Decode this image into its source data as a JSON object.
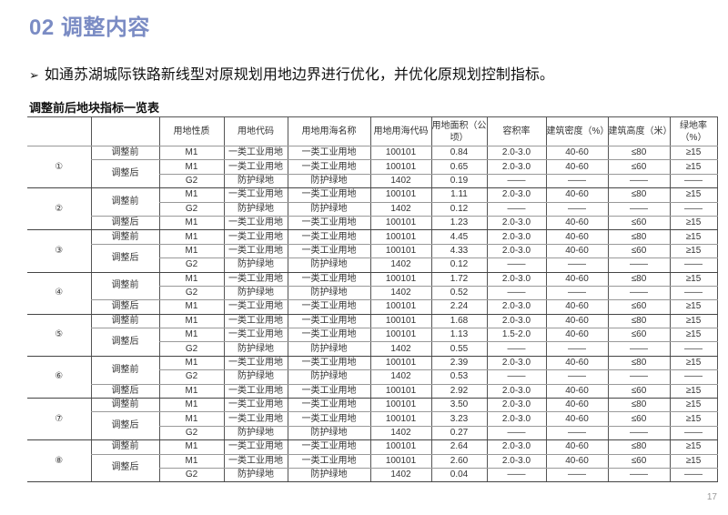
{
  "title": "02 调整内容",
  "bullet": {
    "icon": "arrow-right-icon",
    "symbol": "➢",
    "text": "如通苏湖城际铁路新线型对原规划用地边界进行优化，并优化原规划控制指标。"
  },
  "table_title": "调整前后地块指标一览表",
  "headers": [
    "",
    "",
    "用地性质",
    "用地代码",
    "用地用海名称",
    "用地用海代码",
    "用地面积（公顷）",
    "容积率",
    "建筑密度（%）",
    "建筑高度（米）",
    "绿地率（%）"
  ],
  "groups": [
    {
      "label": "①",
      "phases": [
        {
          "label": "调整前",
          "rows": [
            [
              "M1",
              "一类工业用地",
              "一类工业用地",
              "100101",
              "0.84",
              "2.0-3.0",
              "40-60",
              "≤80",
              "≥15"
            ]
          ]
        },
        {
          "label": "调整后",
          "rows": [
            [
              "M1",
              "一类工业用地",
              "一类工业用地",
              "100101",
              "0.65",
              "2.0-3.0",
              "40-60",
              "≤60",
              "≥15"
            ],
            [
              "G2",
              "防护绿地",
              "防护绿地",
              "1402",
              "0.19",
              "——",
              "——",
              "——",
              "——"
            ]
          ]
        }
      ]
    },
    {
      "label": "②",
      "phases": [
        {
          "label": "调整前",
          "rows": [
            [
              "M1",
              "一类工业用地",
              "一类工业用地",
              "100101",
              "1.11",
              "2.0-3.0",
              "40-60",
              "≤80",
              "≥15"
            ],
            [
              "G2",
              "防护绿地",
              "防护绿地",
              "1402",
              "0.12",
              "——",
              "——",
              "——",
              "——"
            ]
          ]
        },
        {
          "label": "调整后",
          "rows": [
            [
              "M1",
              "一类工业用地",
              "一类工业用地",
              "100101",
              "1.23",
              "2.0-3.0",
              "40-60",
              "≤60",
              "≥15"
            ]
          ]
        }
      ]
    },
    {
      "label": "③",
      "phases": [
        {
          "label": "调整前",
          "rows": [
            [
              "M1",
              "一类工业用地",
              "一类工业用地",
              "100101",
              "4.45",
              "2.0-3.0",
              "40-60",
              "≤80",
              "≥15"
            ]
          ]
        },
        {
          "label": "调整后",
          "rows": [
            [
              "M1",
              "一类工业用地",
              "一类工业用地",
              "100101",
              "4.33",
              "2.0-3.0",
              "40-60",
              "≤60",
              "≥15"
            ],
            [
              "G2",
              "防护绿地",
              "防护绿地",
              "1402",
              "0.12",
              "——",
              "——",
              "——",
              "——"
            ]
          ]
        }
      ]
    },
    {
      "label": "④",
      "phases": [
        {
          "label": "调整前",
          "rows": [
            [
              "M1",
              "一类工业用地",
              "一类工业用地",
              "100101",
              "1.72",
              "2.0-3.0",
              "40-60",
              "≤80",
              "≥15"
            ],
            [
              "G2",
              "防护绿地",
              "防护绿地",
              "1402",
              "0.52",
              "——",
              "——",
              "——",
              "——"
            ]
          ]
        },
        {
          "label": "调整后",
          "rows": [
            [
              "M1",
              "一类工业用地",
              "一类工业用地",
              "100101",
              "2.24",
              "2.0-3.0",
              "40-60",
              "≤60",
              "≥15"
            ]
          ]
        }
      ]
    },
    {
      "label": "⑤",
      "phases": [
        {
          "label": "调整前",
          "rows": [
            [
              "M1",
              "一类工业用地",
              "一类工业用地",
              "100101",
              "1.68",
              "2.0-3.0",
              "40-60",
              "≤80",
              "≥15"
            ]
          ]
        },
        {
          "label": "调整后",
          "rows": [
            [
              "M1",
              "一类工业用地",
              "一类工业用地",
              "100101",
              "1.13",
              "1.5-2.0",
              "40-60",
              "≤60",
              "≥15"
            ],
            [
              "G2",
              "防护绿地",
              "防护绿地",
              "1402",
              "0.55",
              "——",
              "——",
              "——",
              "——"
            ]
          ]
        }
      ]
    },
    {
      "label": "⑥",
      "phases": [
        {
          "label": "调整前",
          "rows": [
            [
              "M1",
              "一类工业用地",
              "一类工业用地",
              "100101",
              "2.39",
              "2.0-3.0",
              "40-60",
              "≤80",
              "≥15"
            ],
            [
              "G2",
              "防护绿地",
              "防护绿地",
              "1402",
              "0.53",
              "——",
              "——",
              "——",
              "——"
            ]
          ]
        },
        {
          "label": "调整后",
          "rows": [
            [
              "M1",
              "一类工业用地",
              "一类工业用地",
              "100101",
              "2.92",
              "2.0-3.0",
              "40-60",
              "≤60",
              "≥15"
            ]
          ]
        }
      ]
    },
    {
      "label": "⑦",
      "phases": [
        {
          "label": "调整前",
          "rows": [
            [
              "M1",
              "一类工业用地",
              "一类工业用地",
              "100101",
              "3.50",
              "2.0-3.0",
              "40-60",
              "≤80",
              "≥15"
            ]
          ]
        },
        {
          "label": "调整后",
          "rows": [
            [
              "M1",
              "一类工业用地",
              "一类工业用地",
              "100101",
              "3.23",
              "2.0-3.0",
              "40-60",
              "≤60",
              "≥15"
            ],
            [
              "G2",
              "防护绿地",
              "防护绿地",
              "1402",
              "0.27",
              "——",
              "——",
              "——",
              "——"
            ]
          ]
        }
      ]
    },
    {
      "label": "⑧",
      "phases": [
        {
          "label": "调整前",
          "rows": [
            [
              "M1",
              "一类工业用地",
              "一类工业用地",
              "100101",
              "2.64",
              "2.0-3.0",
              "40-60",
              "≤80",
              "≥15"
            ]
          ]
        },
        {
          "label": "调整后",
          "rows": [
            [
              "M1",
              "一类工业用地",
              "一类工业用地",
              "100101",
              "2.60",
              "2.0-3.0",
              "40-60",
              "≤60",
              "≥15"
            ],
            [
              "G2",
              "防护绿地",
              "防护绿地",
              "1402",
              "0.04",
              "——",
              "——",
              "——",
              "——"
            ]
          ]
        }
      ]
    }
  ],
  "page_number": "17"
}
